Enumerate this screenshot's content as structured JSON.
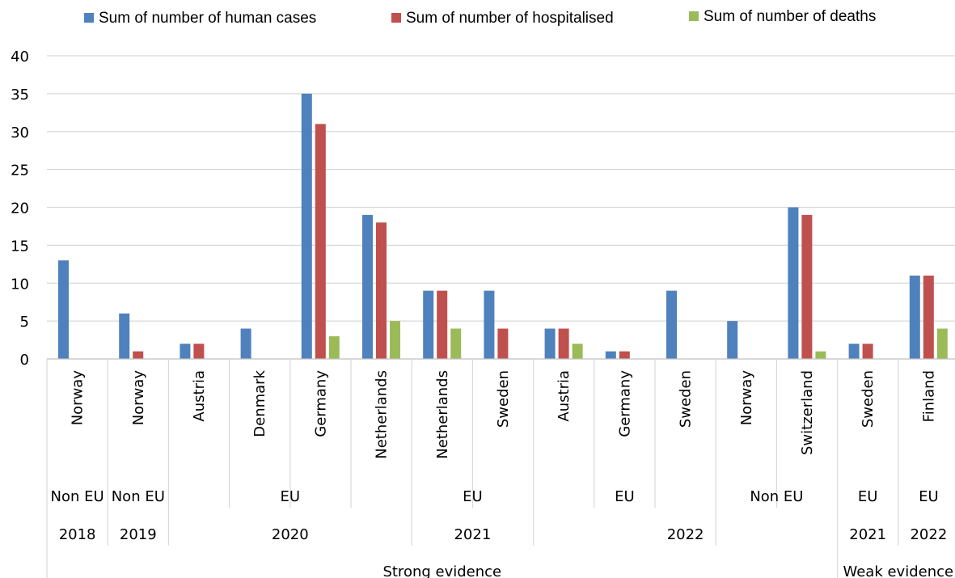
{
  "chart_data": {
    "type": "bar",
    "series": [
      {
        "name": "Sum of number of human cases",
        "color": "#4f81bd",
        "values": [
          13,
          6,
          2,
          4,
          35,
          19,
          9,
          9,
          4,
          1,
          9,
          5,
          20,
          2,
          11
        ]
      },
      {
        "name": "Sum of number of hospitalised",
        "color": "#c0504d",
        "values": [
          0,
          1,
          2,
          0,
          31,
          18,
          9,
          4,
          4,
          1,
          0,
          0,
          19,
          2,
          11
        ]
      },
      {
        "name": "Sum of number of deaths",
        "color": "#9bbb59",
        "values": [
          0,
          0,
          0,
          0,
          3,
          5,
          4,
          0,
          2,
          0,
          0,
          0,
          1,
          0,
          4
        ]
      }
    ],
    "categories": [
      "Norway",
      "Norway",
      "Austria",
      "Denmark",
      "Germany",
      "Netherlands",
      "Netherlands",
      "Sweden",
      "Austria",
      "Germany",
      "Sweden",
      "Norway",
      "Switzerland",
      "Sweden",
      "Finland"
    ],
    "region_groups": [
      {
        "label": "Non EU",
        "start": 0,
        "end": 0
      },
      {
        "label": "Non EU",
        "start": 1,
        "end": 1
      },
      {
        "label": "EU",
        "start": 2,
        "end": 5
      },
      {
        "label": "EU",
        "start": 6,
        "end": 7
      },
      {
        "label": "EU",
        "start": 8,
        "end": 10
      },
      {
        "label": "Non EU",
        "start": 11,
        "end": 12
      },
      {
        "label": "EU",
        "start": 13,
        "end": 13
      },
      {
        "label": "EU",
        "start": 14,
        "end": 14
      }
    ],
    "year_groups": [
      {
        "label": "2018",
        "start": 0,
        "end": 0
      },
      {
        "label": "2019",
        "start": 1,
        "end": 1
      },
      {
        "label": "2020",
        "start": 2,
        "end": 5
      },
      {
        "label": "2021",
        "start": 6,
        "end": 7
      },
      {
        "label": "2022",
        "start": 8,
        "end": 12
      },
      {
        "label": "2021",
        "start": 13,
        "end": 13
      },
      {
        "label": "2022",
        "start": 14,
        "end": 14
      }
    ],
    "evidence_groups": [
      {
        "label": "Strong evidence",
        "start": 0,
        "end": 12
      },
      {
        "label": "Weak evidence",
        "start": 13,
        "end": 14
      }
    ],
    "y_ticks": [
      0,
      5,
      10,
      15,
      20,
      25,
      30,
      35,
      40
    ],
    "ylim": [
      0,
      40
    ],
    "grid": true,
    "legend_position": "top"
  }
}
